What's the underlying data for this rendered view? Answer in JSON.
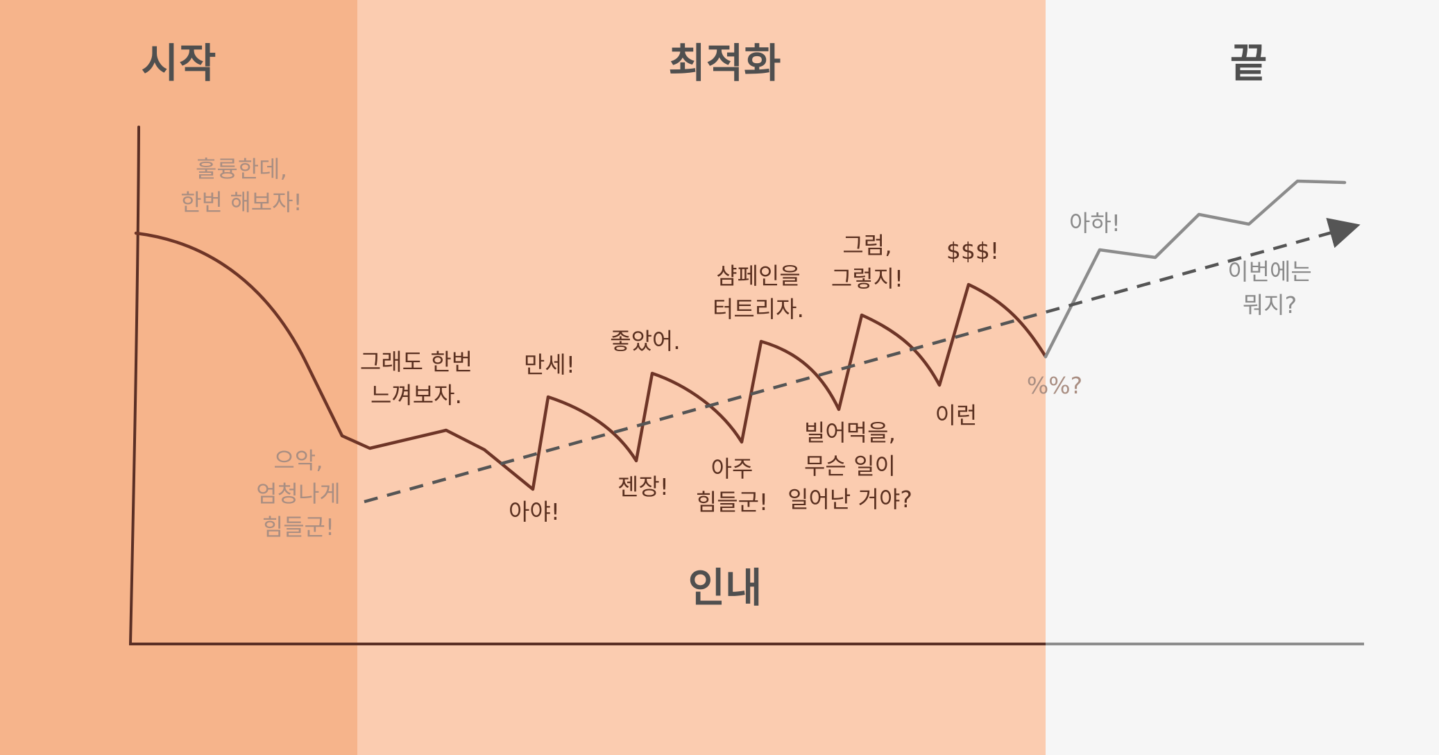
{
  "sections": {
    "start": "시작",
    "optimize": "최적화",
    "end": "끝",
    "patience": "인내"
  },
  "annotations": {
    "great_try": [
      "훌륭한데,",
      "한번 해보자!"
    ],
    "ugh_hard": [
      "으악,",
      "엄청나게",
      "힘들군!"
    ],
    "feel_once": [
      "그래도 한번",
      "느껴보자."
    ],
    "ouch": "아야!",
    "hooray": "만세!",
    "good": "좋았어.",
    "damn": "젠장!",
    "very_hard": [
      "아주",
      "힘들군!"
    ],
    "champagne": [
      "샴페인을",
      "터트리자."
    ],
    "darn_what": [
      "빌어먹을,",
      "무슨 일이",
      "일어난 거야?"
    ],
    "of_course": [
      "그럼,",
      "그렇지!"
    ],
    "oh_no": "이런",
    "money": "$$$!",
    "percent": "%%?",
    "aha": "아하!",
    "what_now": [
      "이번에는",
      "뭐지?"
    ]
  },
  "colors": {
    "start_zone": "#f6b48b",
    "optimize_zone": "#fbccb0",
    "end_zone": "#f6f6f6",
    "curve": "#6e3527",
    "curve_end": "#8c8c8c",
    "trend": "#555555",
    "title": "#4f4f4f"
  }
}
